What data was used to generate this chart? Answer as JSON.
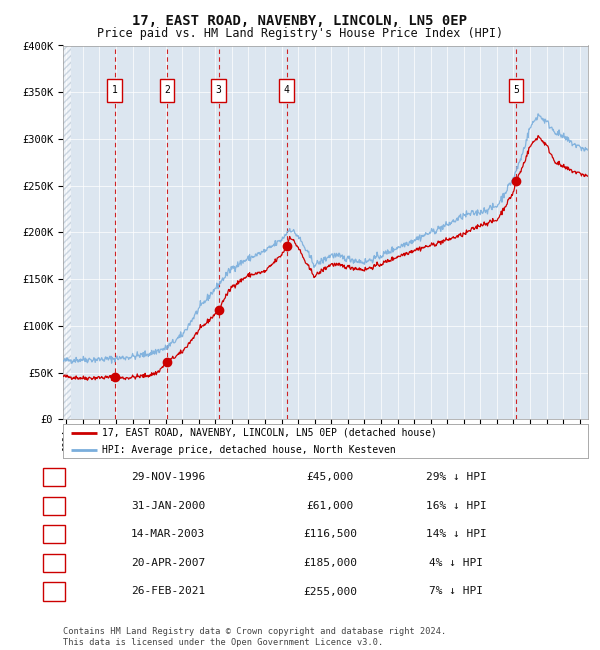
{
  "title": "17, EAST ROAD, NAVENBY, LINCOLN, LN5 0EP",
  "subtitle": "Price paid vs. HM Land Registry's House Price Index (HPI)",
  "title_fontsize": 10,
  "subtitle_fontsize": 8.5,
  "background_color": "#ffffff",
  "plot_bg_color": "#dce6f0",
  "grid_color": "#ffffff",
  "ylim": [
    0,
    400000
  ],
  "yticks": [
    0,
    50000,
    100000,
    150000,
    200000,
    250000,
    300000,
    350000,
    400000
  ],
  "ytick_labels": [
    "£0",
    "£50K",
    "£100K",
    "£150K",
    "£200K",
    "£250K",
    "£300K",
    "£350K",
    "£400K"
  ],
  "sale_dates_num": [
    1996.91,
    2000.08,
    2003.2,
    2007.3,
    2021.15
  ],
  "sale_prices": [
    45000,
    61000,
    116500,
    185000,
    255000
  ],
  "sale_labels": [
    "1",
    "2",
    "3",
    "4",
    "5"
  ],
  "sale_date_strs": [
    "29-NOV-1996",
    "31-JAN-2000",
    "14-MAR-2003",
    "20-APR-2007",
    "26-FEB-2021"
  ],
  "sale_price_strs": [
    "£45,000",
    "£61,000",
    "£116,500",
    "£185,000",
    "£255,000"
  ],
  "sale_hpi_strs": [
    "29% ↓ HPI",
    "16% ↓ HPI",
    "14% ↓ HPI",
    "4% ↓ HPI",
    "7% ↓ HPI"
  ],
  "red_line_color": "#cc0000",
  "blue_line_color": "#7aaedc",
  "sale_dot_color": "#cc0000",
  "vline_color": "#cc0000",
  "box_color": "#cc0000",
  "legend_label_red": "17, EAST ROAD, NAVENBY, LINCOLN, LN5 0EP (detached house)",
  "legend_label_blue": "HPI: Average price, detached house, North Kesteven",
  "footer_text": "Contains HM Land Registry data © Crown copyright and database right 2024.\nThis data is licensed under the Open Government Licence v3.0.",
  "xmin": 1993.8,
  "xmax": 2025.5,
  "hpi_anchors": [
    [
      1993.8,
      62000
    ],
    [
      1994.0,
      63000
    ],
    [
      1995.0,
      64000
    ],
    [
      1996.0,
      64000
    ],
    [
      1997.0,
      65000
    ],
    [
      1998.0,
      67000
    ],
    [
      1999.0,
      70000
    ],
    [
      2000.0,
      76000
    ],
    [
      2001.0,
      90000
    ],
    [
      2002.0,
      118000
    ],
    [
      2003.0,
      140000
    ],
    [
      2004.0,
      162000
    ],
    [
      2005.0,
      172000
    ],
    [
      2006.0,
      180000
    ],
    [
      2007.0,
      192000
    ],
    [
      2007.5,
      204000
    ],
    [
      2008.0,
      196000
    ],
    [
      2008.5,
      180000
    ],
    [
      2009.0,
      165000
    ],
    [
      2009.5,
      170000
    ],
    [
      2010.0,
      176000
    ],
    [
      2011.0,
      172000
    ],
    [
      2012.0,
      168000
    ],
    [
      2013.0,
      175000
    ],
    [
      2014.0,
      184000
    ],
    [
      2015.0,
      192000
    ],
    [
      2016.0,
      200000
    ],
    [
      2017.0,
      208000
    ],
    [
      2018.0,
      218000
    ],
    [
      2019.0,
      222000
    ],
    [
      2020.0,
      228000
    ],
    [
      2021.0,
      258000
    ],
    [
      2021.5,
      282000
    ],
    [
      2022.0,
      312000
    ],
    [
      2022.5,
      326000
    ],
    [
      2023.0,
      318000
    ],
    [
      2023.5,
      308000
    ],
    [
      2024.0,
      302000
    ],
    [
      2024.5,
      296000
    ],
    [
      2025.0,
      291000
    ],
    [
      2025.5,
      288000
    ]
  ],
  "red_anchors": [
    [
      1993.8,
      46000
    ],
    [
      1994.0,
      45500
    ],
    [
      1995.0,
      44000
    ],
    [
      1996.0,
      44500
    ],
    [
      1996.91,
      45000
    ],
    [
      1997.5,
      44000
    ],
    [
      1998.0,
      45000
    ],
    [
      1999.0,
      47000
    ],
    [
      1999.5,
      50000
    ],
    [
      2000.08,
      61000
    ],
    [
      2001.0,
      72000
    ],
    [
      2002.0,
      95000
    ],
    [
      2003.2,
      116500
    ],
    [
      2003.5,
      128000
    ],
    [
      2004.0,
      142000
    ],
    [
      2005.0,
      154000
    ],
    [
      2006.0,
      158000
    ],
    [
      2007.0,
      176000
    ],
    [
      2007.3,
      185000
    ],
    [
      2007.5,
      196000
    ],
    [
      2008.0,
      184000
    ],
    [
      2008.5,
      166000
    ],
    [
      2009.0,
      153000
    ],
    [
      2009.5,
      160000
    ],
    [
      2010.0,
      166000
    ],
    [
      2011.0,
      163000
    ],
    [
      2012.0,
      160000
    ],
    [
      2013.0,
      166000
    ],
    [
      2014.0,
      174000
    ],
    [
      2015.0,
      181000
    ],
    [
      2016.0,
      186000
    ],
    [
      2017.0,
      192000
    ],
    [
      2018.0,
      198000
    ],
    [
      2019.0,
      208000
    ],
    [
      2020.0,
      213000
    ],
    [
      2021.0,
      243000
    ],
    [
      2021.15,
      255000
    ],
    [
      2021.5,
      268000
    ],
    [
      2022.0,
      292000
    ],
    [
      2022.5,
      303000
    ],
    [
      2023.0,
      293000
    ],
    [
      2023.5,
      276000
    ],
    [
      2024.0,
      270000
    ],
    [
      2024.5,
      266000
    ],
    [
      2025.0,
      263000
    ],
    [
      2025.5,
      260000
    ]
  ]
}
